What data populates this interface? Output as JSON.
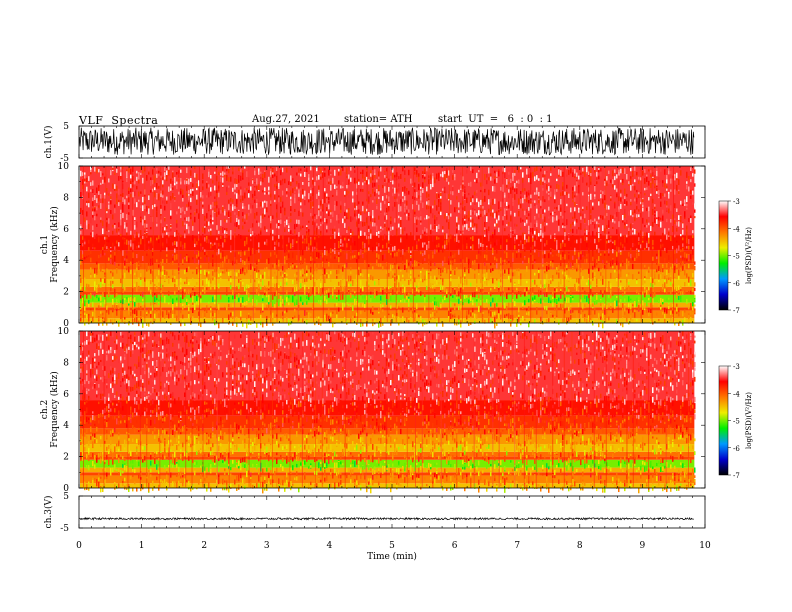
{
  "header": {
    "title": "VLF  Spectra",
    "date": "Aug.27, 2021",
    "station": "station= ATH",
    "start": "start  UT  =   6  : 0  : 1"
  },
  "chart_data": [
    {
      "type": "line",
      "id": "ch1-waveform",
      "ylabel": "ch.1(V)",
      "ylim": [
        -5,
        5
      ],
      "yticks": [
        "5",
        "-5"
      ],
      "xlim": [
        0,
        10
      ],
      "data_end_min": 9.83,
      "waveform_amplitude_V": [
        -4.0,
        4.5
      ]
    },
    {
      "type": "heatmap",
      "id": "ch1-spectrogram",
      "ylabel_line1": "ch.1",
      "ylabel_line2": "Frequency  (kHz)",
      "ylim": [
        0,
        10
      ],
      "yticks": [
        "0",
        "2",
        "4",
        "6",
        "8",
        "10"
      ],
      "xlim": [
        0,
        10
      ],
      "data_end_min": 9.83,
      "colorbar": {
        "label": "log(PSD)(V²/Hz)",
        "range": [
          -7,
          -3
        ],
        "ticks": [
          "-3",
          "-4",
          "-5",
          "-6",
          "-7"
        ],
        "colors": [
          "#000000",
          "#0000cc",
          "#0099ff",
          "#00ee00",
          "#eeee00",
          "#ff7700",
          "#ff0000",
          "#ffffff"
        ]
      },
      "bands_kHz_logpsd": [
        {
          "from": 0.0,
          "to": 0.3,
          "level": -4.5
        },
        {
          "from": 0.3,
          "to": 0.8,
          "level": -4.2
        },
        {
          "from": 0.8,
          "to": 1.0,
          "level": -3.9
        },
        {
          "from": 1.0,
          "to": 1.3,
          "level": -4.4
        },
        {
          "from": 1.3,
          "to": 1.8,
          "level": -5.0
        },
        {
          "from": 1.8,
          "to": 2.0,
          "level": -3.9
        },
        {
          "from": 2.0,
          "to": 2.3,
          "level": -4.1
        },
        {
          "from": 2.3,
          "to": 2.8,
          "level": -4.5
        },
        {
          "from": 2.8,
          "to": 3.4,
          "level": -4.3
        },
        {
          "from": 3.4,
          "to": 3.8,
          "level": -4.0
        },
        {
          "from": 3.8,
          "to": 4.6,
          "level": -3.8
        },
        {
          "from": 4.6,
          "to": 5.6,
          "level": -3.65
        },
        {
          "from": 5.6,
          "to": 10.0,
          "level": -3.45
        }
      ]
    },
    {
      "type": "heatmap",
      "id": "ch2-spectrogram",
      "ylabel_line1": "ch.2",
      "ylabel_line2": "Frequency  (kHz)",
      "ylim": [
        0,
        10
      ],
      "yticks": [
        "0",
        "2",
        "4",
        "6",
        "8",
        "10"
      ],
      "xlim": [
        0,
        10
      ],
      "data_end_min": 9.83,
      "colorbar": {
        "label": "log(PSD)(V²/Hz)",
        "range": [
          -7,
          -3
        ],
        "ticks": [
          "-3",
          "-4",
          "-5",
          "-6",
          "-7"
        ],
        "colors": [
          "#000000",
          "#0000cc",
          "#0099ff",
          "#00ee00",
          "#eeee00",
          "#ff7700",
          "#ff0000",
          "#ffffff"
        ]
      },
      "bands_kHz_logpsd": [
        {
          "from": 0.0,
          "to": 0.3,
          "level": -4.5
        },
        {
          "from": 0.3,
          "to": 0.8,
          "level": -4.2
        },
        {
          "from": 0.8,
          "to": 1.0,
          "level": -3.9
        },
        {
          "from": 1.0,
          "to": 1.3,
          "level": -4.4
        },
        {
          "from": 1.3,
          "to": 1.8,
          "level": -5.0
        },
        {
          "from": 1.8,
          "to": 2.0,
          "level": -3.9
        },
        {
          "from": 2.0,
          "to": 2.3,
          "level": -4.1
        },
        {
          "from": 2.3,
          "to": 2.8,
          "level": -4.5
        },
        {
          "from": 2.8,
          "to": 3.4,
          "level": -4.3
        },
        {
          "from": 3.4,
          "to": 3.8,
          "level": -4.0
        },
        {
          "from": 3.8,
          "to": 4.6,
          "level": -3.8
        },
        {
          "from": 4.6,
          "to": 5.6,
          "level": -3.65
        },
        {
          "from": 5.6,
          "to": 10.0,
          "level": -3.45
        }
      ]
    },
    {
      "type": "line",
      "id": "ch3-waveform",
      "ylabel": "ch.3(V)",
      "ylim": [
        -5,
        5
      ],
      "yticks": [
        "5",
        "-5"
      ],
      "xlim": [
        0,
        10
      ],
      "data_end_min": 9.83,
      "waveform_amplitude_V": [
        -0.3,
        0.3
      ],
      "waveform_offset_V": -2.1,
      "xlabel": "Time  (min)",
      "xticks": [
        "0",
        "1",
        "2",
        "3",
        "4",
        "5",
        "6",
        "7",
        "8",
        "9",
        "10"
      ]
    }
  ]
}
